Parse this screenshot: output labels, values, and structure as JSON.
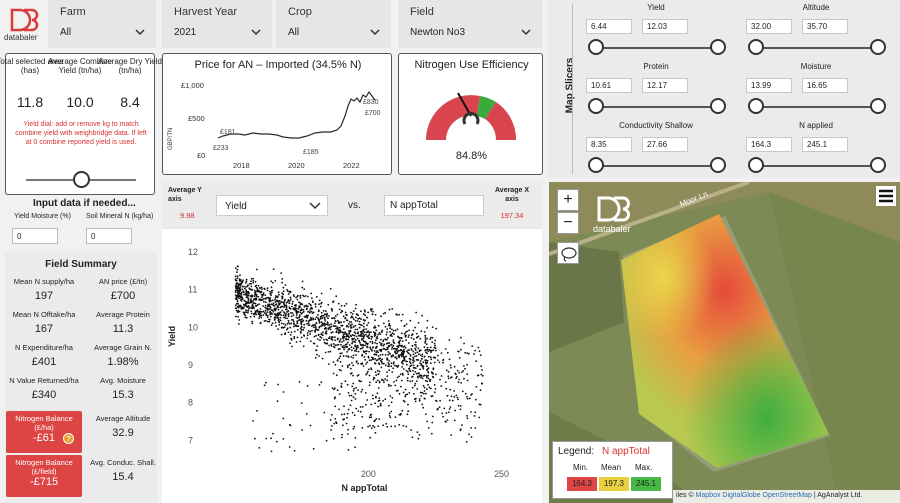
{
  "logo": {
    "text": "databaler"
  },
  "filters": {
    "farm": {
      "label": "Farm",
      "value": "All"
    },
    "harvest_year": {
      "label": "Harvest Year",
      "value": "2021"
    },
    "crop": {
      "label": "Crop",
      "value": "All"
    },
    "field": {
      "label": "Field",
      "value": "Newton No3"
    }
  },
  "map_slicers": {
    "title": "Map Slicers",
    "items": [
      {
        "label": "Yield",
        "min": "6.44",
        "max": "12.03"
      },
      {
        "label": "Altitude",
        "min": "32.00",
        "max": "35.70"
      },
      {
        "label": "Protein",
        "min": "10.61",
        "max": "12.17"
      },
      {
        "label": "Moisture",
        "min": "13.99",
        "max": "16.65"
      },
      {
        "label": "Conductivity Shallow",
        "min": "8.35",
        "max": "27.66"
      },
      {
        "label": "N applied",
        "min": "164.3",
        "max": "245.1"
      }
    ]
  },
  "kpis": {
    "area_label": "Total selected area (has)",
    "area_value": "11.8",
    "combine_label": "Average Combine Yield (tn/ha)",
    "combine_value": "10.0",
    "dry_label": "Average Dry Yield (tn/ha)",
    "dry_value": "8.4",
    "note": "Yield dial: add or remove kg to match combine yield with weighbridge data. If left at 0 combine reported yield is used."
  },
  "input": {
    "title": "Input data if needed...",
    "moisture_label": "Yield Moisture (%)",
    "moisture_value": "0",
    "soil_label": "Soil Mineral N (kg/ha)",
    "soil_value": "0"
  },
  "field_summary": {
    "title": "Field Summary",
    "left": [
      {
        "label": "Mean N supply/ha",
        "value": "197"
      },
      {
        "label": "Mean N Offtake/ha",
        "value": "167"
      },
      {
        "label": "N Expenditure/ha",
        "value": "£401"
      },
      {
        "label": "N Value Returned/ha",
        "value": "£340"
      },
      {
        "label": "Nitrogen Balance (£/ha)",
        "value": "-£61"
      },
      {
        "label": "Nitrogen Balance (£/field)",
        "value": "-£715"
      }
    ],
    "right": [
      {
        "label": "AN price (£/tn)",
        "value": "£700"
      },
      {
        "label": "Average Protein",
        "value": "11.3"
      },
      {
        "label": "Average Grain N.",
        "value": "1.98%"
      },
      {
        "label": "Avg. Moisture",
        "value": "15.3"
      },
      {
        "label": "Average Altitude",
        "value": "32.9"
      },
      {
        "label": "Avg. Conduc. Shall.",
        "value": "15.4"
      }
    ],
    "info_icon": "?"
  },
  "an_price_chart": {
    "title": "Price for AN – Imported (34.5% N)",
    "ylabel": "GBP/TN",
    "yticks": [
      "£1,000",
      "£500",
      "£0"
    ],
    "xticks": [
      "2018",
      "2020",
      "2022"
    ],
    "annotations": [
      "£181",
      "£233",
      "£185",
      "£830",
      "£700"
    ],
    "color": "#2b2b2b"
  },
  "nue": {
    "title": "Nitrogen Use Efficiency",
    "value": "84.8%",
    "fraction": 0.848,
    "colors": {
      "red": "#d9454f",
      "green": "#3aaa3a"
    }
  },
  "scatter": {
    "avg_y_label": "Average Y axis",
    "avg_y_value": "9.98",
    "y_select": "Yield",
    "vs": "vs.",
    "x_input": "N appTotal",
    "avg_x_label": "Average X axis",
    "avg_x_value": "197.34"
  },
  "chart_data": {
    "type": "scatter",
    "title": "",
    "xlabel": "N appTotal",
    "ylabel": "Yield",
    "xlim": [
      140,
      262
    ],
    "ylim": [
      6.4,
      12.4
    ],
    "xticks": [
      "200",
      "250"
    ],
    "yticks": [
      "12",
      "11",
      "10",
      "9",
      "8",
      "7"
    ],
    "point_color": "#111111"
  },
  "map": {
    "zoom_in": "+",
    "zoom_out": "−",
    "road_label": "Moor Ln",
    "legend_title": "Legend:",
    "legend_field": "N appTotal",
    "legend_headers": [
      "Min.",
      "Mean",
      "Max."
    ],
    "legend_values": [
      "164.3",
      "197.3",
      "245.1"
    ],
    "legend_colors": [
      "#e04545",
      "#e8d040",
      "#45b845"
    ],
    "attribution_prefix": "iles ©",
    "attribution_links": [
      "Mapbox",
      "DigitalGlobe",
      "OpenStreetMap"
    ],
    "attribution_suffix": "| AgAnalyst Ltd."
  }
}
